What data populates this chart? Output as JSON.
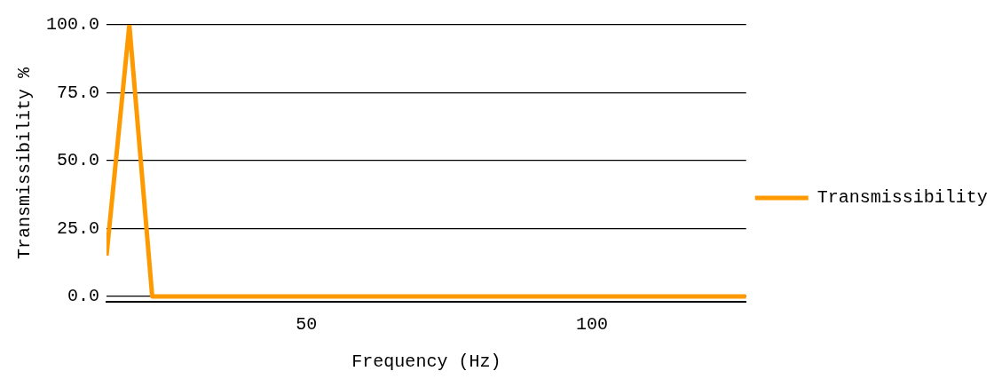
{
  "chart_data": {
    "type": "line",
    "xlabel": "Frequency (Hz)",
    "ylabel": "Transmissibility %",
    "x": [
      15,
      19,
      23,
      27,
      31,
      35,
      39,
      43,
      47,
      51,
      55,
      59,
      63,
      67,
      71,
      75,
      79,
      83,
      87,
      91,
      95,
      99,
      103,
      107,
      111,
      115,
      119,
      123,
      127
    ],
    "series": [
      {
        "name": "Transmissibility",
        "color": "#ff9900",
        "values": [
          15,
          100,
          0,
          0,
          0,
          0,
          0,
          0,
          0,
          0,
          0,
          0,
          0,
          0,
          0,
          0,
          0,
          0,
          0,
          0,
          0,
          0,
          0,
          0,
          0,
          0,
          0,
          0,
          0
        ]
      }
    ],
    "xlim": [
      15,
      127
    ],
    "xticks": [
      50,
      100
    ],
    "ylim": [
      -2,
      100
    ],
    "yticks": [
      {
        "value": 0,
        "label": "0.0"
      },
      {
        "value": 25,
        "label": "25.0"
      },
      {
        "value": 50,
        "label": "50.0"
      },
      {
        "value": 75,
        "label": "75.0"
      },
      {
        "value": 100,
        "label": "100.0"
      }
    ],
    "grid": "y",
    "legend": "right",
    "marker": "none",
    "line_style": "solid"
  }
}
